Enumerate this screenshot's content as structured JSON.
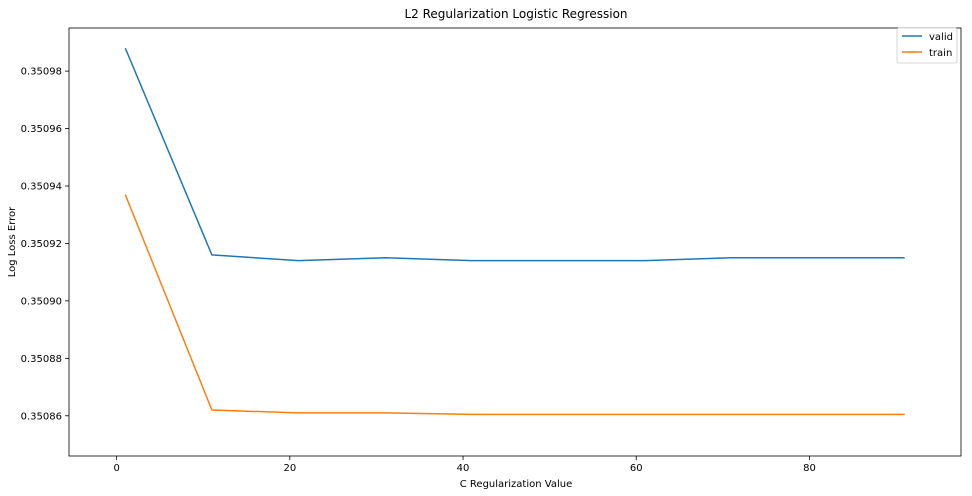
{
  "chart_data": {
    "type": "line",
    "title": "L2 Regularization Logistic Regression",
    "xlabel": "C Regularization Value",
    "ylabel": "Log Loss Error",
    "x": [
      1,
      11,
      21,
      31,
      41,
      51,
      61,
      71,
      81,
      91
    ],
    "xlim": [
      -5.5,
      97.5
    ],
    "ylim": [
      0.350846,
      0.350995
    ],
    "xticks": [
      0,
      20,
      40,
      60,
      80
    ],
    "yticks": [
      0.35086,
      0.35088,
      0.3509,
      0.35092,
      0.35094,
      0.35096,
      0.35098
    ],
    "ytick_labels": [
      "0.35086",
      "0.35088",
      "0.35090",
      "0.35092",
      "0.35094",
      "0.35096",
      "0.35098"
    ],
    "grid": false,
    "legend_position": "top-right",
    "series": [
      {
        "name": "valid",
        "color": "#1f77b4",
        "values": [
          0.350988,
          0.350916,
          0.350914,
          0.350915,
          0.350914,
          0.350914,
          0.350914,
          0.350915,
          0.350915,
          0.350915
        ]
      },
      {
        "name": "train",
        "color": "#ff7f0e",
        "values": [
          0.350937,
          0.350862,
          0.350861,
          0.350861,
          0.3508605,
          0.3508605,
          0.3508605,
          0.3508605,
          0.3508605,
          0.3508605
        ]
      }
    ]
  }
}
